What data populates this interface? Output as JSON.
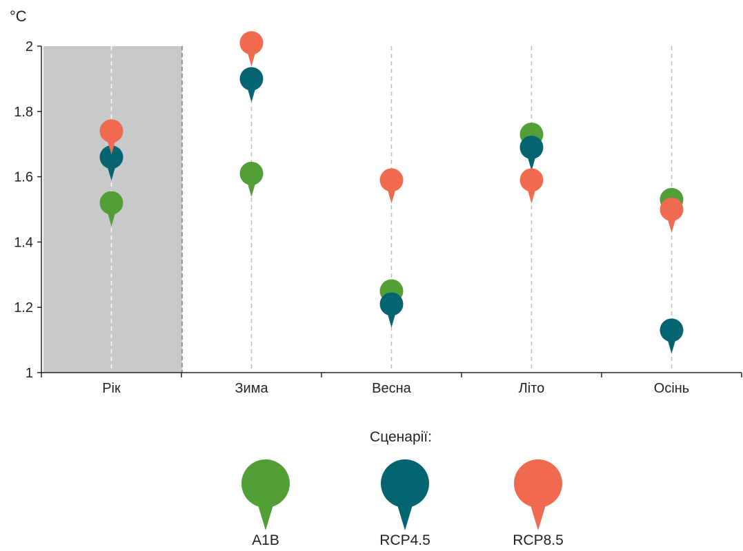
{
  "chart_data": {
    "type": "scatter",
    "ylabel": "°C",
    "categories": [
      "Рік",
      "Зима",
      "Весна",
      "Літо",
      "Осінь"
    ],
    "ylim": [
      1,
      2
    ],
    "yticks": [
      "1",
      "1.2",
      "1.4",
      "1.6",
      "1.8",
      "2"
    ],
    "highlighted_category": "Рік",
    "legend_title": "Сценарії:",
    "legend_position": "bottom-center",
    "series": [
      {
        "name": "A1B",
        "color": "#529e37",
        "values": [
          1.52,
          1.61,
          1.25,
          1.73,
          1.53
        ]
      },
      {
        "name": "RCP4.5",
        "color": "#046570",
        "values": [
          1.66,
          1.9,
          1.21,
          1.69,
          1.13
        ]
      },
      {
        "name": "RCP8.5",
        "color": "#f06a50",
        "values": [
          1.74,
          2.01,
          1.59,
          1.59,
          1.5
        ]
      }
    ]
  }
}
